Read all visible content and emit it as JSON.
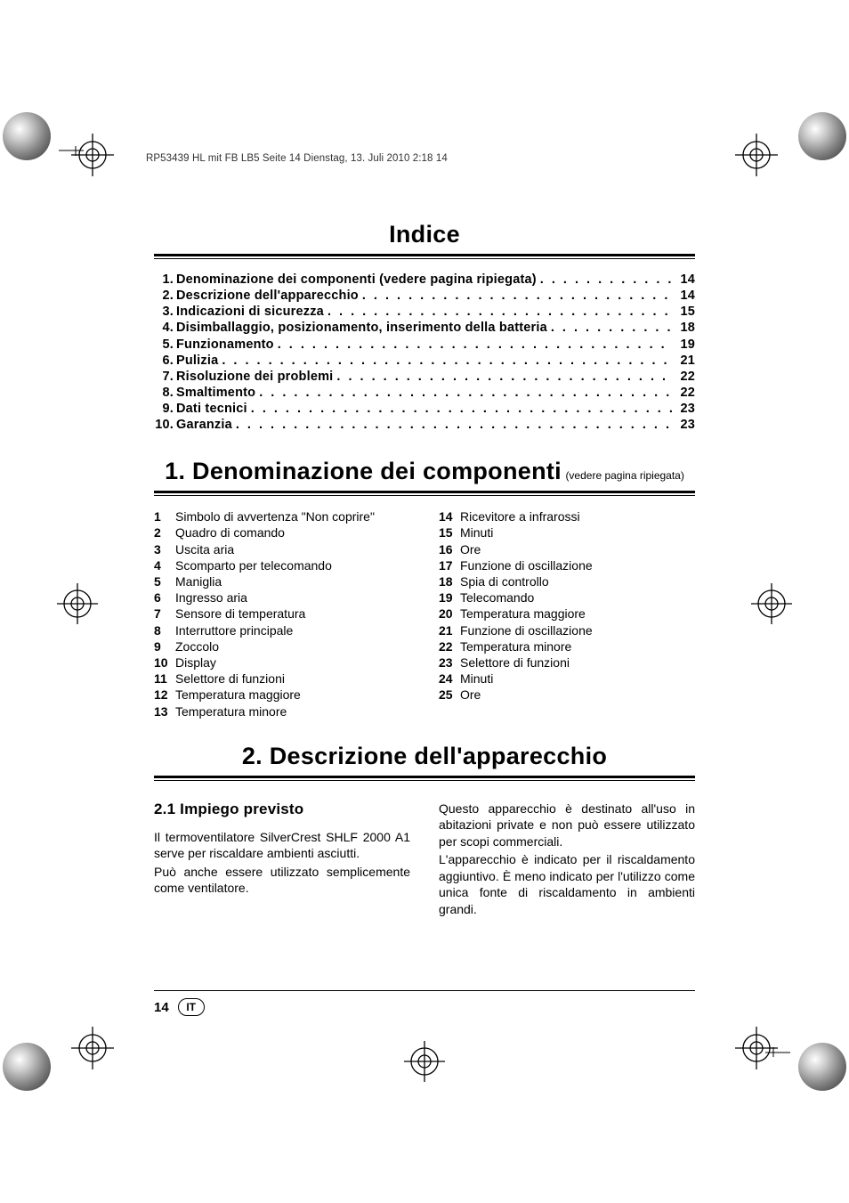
{
  "header_line": "RP53439 HL mit FB LB5  Seite 14  Dienstag, 13. Juli 2010  2:18 14",
  "toc_title": "Indice",
  "toc_items": [
    {
      "num": "1.",
      "label": "Denominazione dei componenti (vedere pagina ripiegata)",
      "page": "14"
    },
    {
      "num": "2.",
      "label": "Descrizione dell'apparecchio",
      "page": "14"
    },
    {
      "num": "3.",
      "label": "Indicazioni di sicurezza",
      "page": "15"
    },
    {
      "num": "4.",
      "label": "Disimballaggio, posizionamento, inserimento della batteria",
      "page": "18"
    },
    {
      "num": "5.",
      "label": "Funzionamento",
      "page": "19"
    },
    {
      "num": "6.",
      "label": "Pulizia",
      "page": "21"
    },
    {
      "num": "7.",
      "label": "Risoluzione dei problemi",
      "page": "22"
    },
    {
      "num": "8.",
      "label": "Smaltimento",
      "page": "22"
    },
    {
      "num": "9.",
      "label": "Dati tecnici",
      "page": "23"
    },
    {
      "num": "10.",
      "label": "Garanzia",
      "page": "23"
    }
  ],
  "section1": {
    "title": "1. Denominazione dei componenti",
    "sub": "(vedere pagina ripiegata)",
    "left": [
      {
        "n": "1",
        "t": "Simbolo di avvertenza \"Non coprire\""
      },
      {
        "n": "2",
        "t": "Quadro di comando"
      },
      {
        "n": "3",
        "t": "Uscita aria"
      },
      {
        "n": "4",
        "t": "Scomparto per telecomando"
      },
      {
        "n": "5",
        "t": "Maniglia"
      },
      {
        "n": "6",
        "t": "Ingresso aria"
      },
      {
        "n": "7",
        "t": "Sensore di temperatura"
      },
      {
        "n": "8",
        "t": "Interruttore principale"
      },
      {
        "n": "9",
        "t": "Zoccolo"
      },
      {
        "n": "10",
        "t": "Display"
      },
      {
        "n": "11",
        "t": "Selettore di funzioni"
      },
      {
        "n": "12",
        "t": "Temperatura maggiore"
      },
      {
        "n": "13",
        "t": "Temperatura minore"
      }
    ],
    "right": [
      {
        "n": "14",
        "t": "Ricevitore a infrarossi"
      },
      {
        "n": "15",
        "t": "Minuti"
      },
      {
        "n": "16",
        "t": "Ore"
      },
      {
        "n": "17",
        "t": "Funzione di oscillazione"
      },
      {
        "n": "18",
        "t": "Spia di controllo"
      },
      {
        "n": "19",
        "t": "Telecomando"
      },
      {
        "n": "20",
        "t": "Temperatura maggiore"
      },
      {
        "n": "21",
        "t": "Funzione di oscillazione"
      },
      {
        "n": "22",
        "t": "Temperatura minore"
      },
      {
        "n": "23",
        "t": "Selettore di funzioni"
      },
      {
        "n": "24",
        "t": "Minuti"
      },
      {
        "n": "25",
        "t": "Ore"
      }
    ]
  },
  "section2": {
    "title": "2. Descrizione dell'apparecchio",
    "sub21_title": "2.1  Impiego previsto",
    "left_p1": "Il termoventilatore SilverCrest SHLF 2000 A1 serve per riscaldare ambienti asciutti.",
    "left_p2": "Può anche essere utilizzato semplicemente come ventilatore.",
    "right_p1": "Questo apparecchio è destinato all'uso in abitazioni private e non può essere utilizzato per scopi commerciali.",
    "right_p2": "L'apparecchio è indicato per il riscaldamento aggiuntivo. È meno indicato per l'utilizzo come unica fonte di riscaldamento in ambienti grandi."
  },
  "footer": {
    "page": "14",
    "lang": "IT"
  },
  "colors": {
    "text": "#000000",
    "globe_highlight": "#fefefe",
    "globe_mid": "#888888",
    "globe_dark": "#333333",
    "header_text": "#333333"
  }
}
